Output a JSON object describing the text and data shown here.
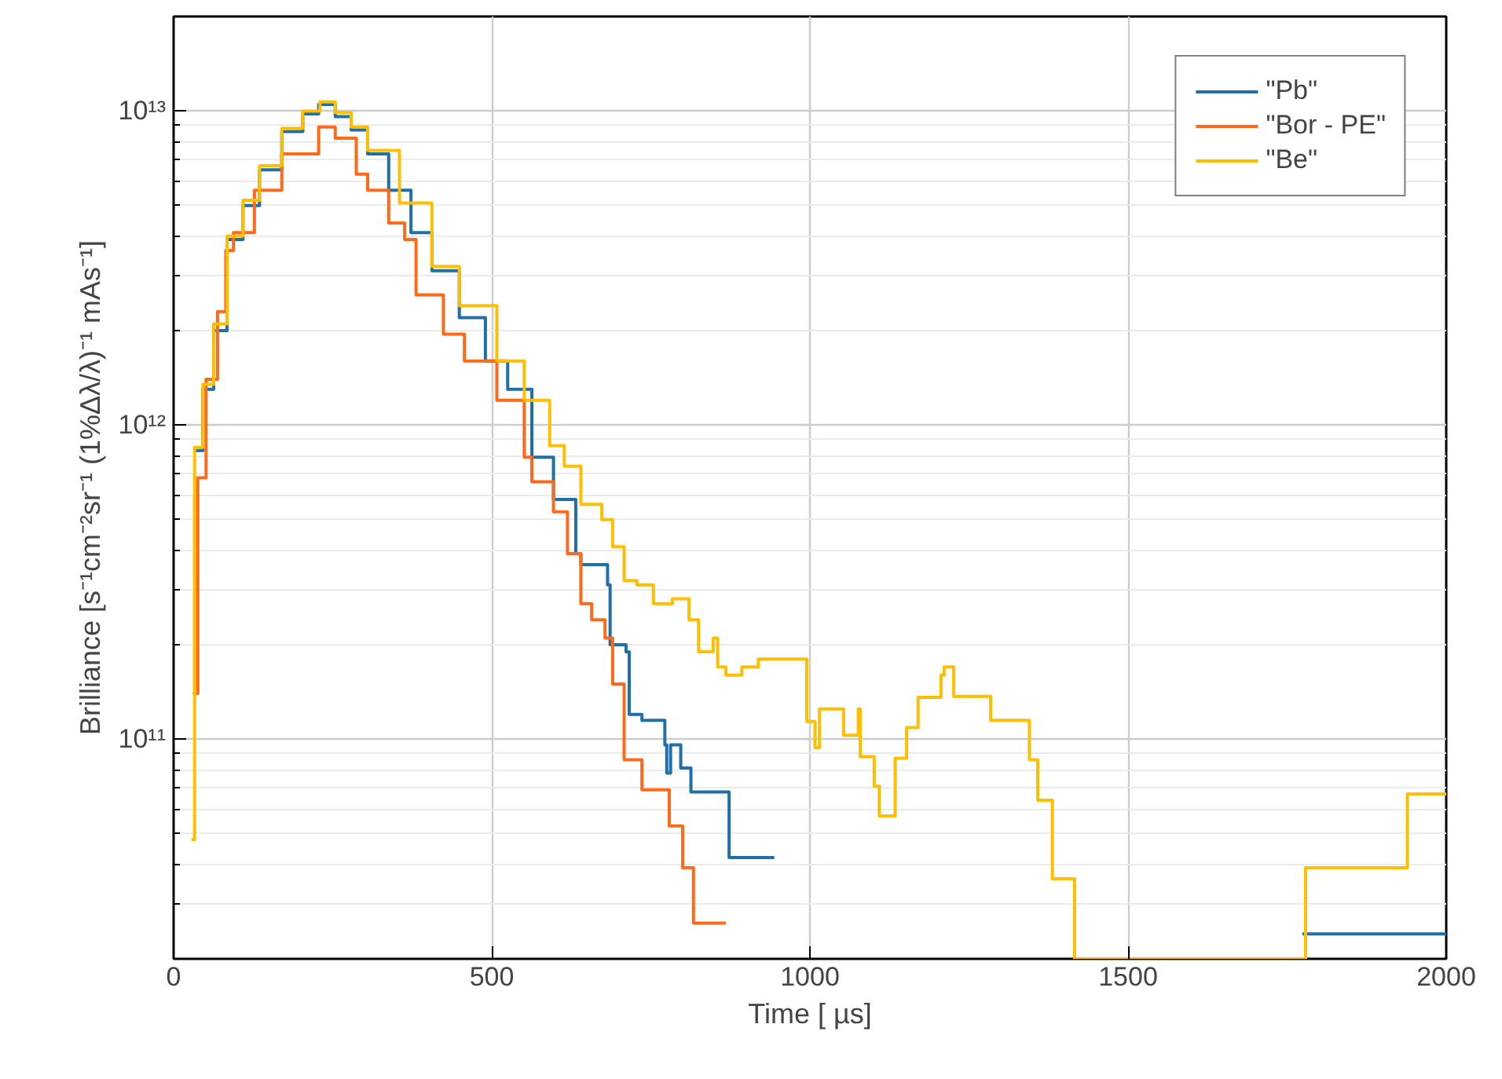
{
  "chart_data": {
    "type": "step",
    "xlabel": "Time [ µs]",
    "ylabel": "Brilliance [s⁻¹cm⁻²sr⁻¹ (1%Δλ/λ)⁻¹ mAs⁻¹]",
    "log": "y",
    "grid": true,
    "legend": "top right",
    "line_style": "solid",
    "xlim": [
      0,
      2000
    ],
    "xticks": [
      0,
      500,
      1000,
      1500,
      2000
    ],
    "ylim": [
      20000000000.0,
      20000000000000.0
    ],
    "yticks": [
      {
        "value": 100000000000.0,
        "label": "10¹¹"
      },
      {
        "value": 1000000000000.0,
        "label": "10¹²"
      },
      {
        "value": 10000000000000.0,
        "label": "10¹³"
      }
    ],
    "series": [
      {
        "name": "\"Pb\"",
        "color": "#1f6fa8",
        "x": [
          33,
          46,
          63,
          84,
          109,
          135,
          170,
          203,
          228,
          254,
          279,
          305,
          338,
          373,
          406,
          449,
          490,
          525,
          563,
          597,
          632,
          640,
          682,
          686,
          711,
          716,
          736,
          772,
          775,
          781,
          797,
          813,
          873,
          944,
          1774,
          2000
        ],
        "values": [
          830000000000.0,
          1300000000000.0,
          2000000000000.0,
          3900000000000.0,
          5000000000000.0,
          6500000000000.0,
          8600000000000.0,
          9800000000000.0,
          10500000000000.0,
          9600000000000.0,
          8700000000000.0,
          7300000000000.0,
          5600000000000.0,
          4100000000000.0,
          3100000000000.0,
          2200000000000.0,
          1600000000000.0,
          1300000000000.0,
          790000000000.0,
          580000000000.0,
          390000000000.0,
          360000000000.0,
          310000000000.0,
          200000000000.0,
          190000000000.0,
          120000000000.0,
          115000000000.0,
          96000000000.0,
          78000000000.0,
          96000000000.0,
          81000000000.0,
          68000000000.0,
          42000000000.0,
          null,
          24000000000.0,
          24000000000.0
        ]
      },
      {
        "name": "\"Bor - PE\"",
        "color": "#ff6a1a",
        "x": [
          30,
          38,
          51,
          69,
          82,
          94,
          127,
          170,
          228,
          254,
          287,
          305,
          338,
          363,
          381,
          424,
          457,
          508,
          551,
          563,
          597,
          619,
          640,
          657,
          678,
          690,
          708,
          736,
          779,
          800,
          817,
          868
        ],
        "values": [
          140000000000.0,
          680000000000.0,
          1400000000000.0,
          2300000000000.0,
          3600000000000.0,
          4100000000000.0,
          5600000000000.0,
          7300000000000.0,
          8900000000000.0,
          8200000000000.0,
          6300000000000.0,
          5600000000000.0,
          4400000000000.0,
          3900000000000.0,
          2600000000000.0,
          1950000000000.0,
          1600000000000.0,
          1200000000000.0,
          790000000000.0,
          660000000000.0,
          530000000000.0,
          390000000000.0,
          270000000000.0,
          240000000000.0,
          210000000000.0,
          150000000000.0,
          86000000000.0,
          69000000000.0,
          53000000000.0,
          39000000000.0,
          26000000000.0,
          26000000000.0
        ]
      },
      {
        "name": "\"Be\"",
        "color": "#ffbf00",
        "x": [
          28,
          33,
          46,
          63,
          84,
          109,
          135,
          170,
          203,
          230,
          254,
          279,
          305,
          355,
          406,
          449,
          508,
          551,
          591,
          614,
          640,
          673,
          690,
          708,
          728,
          754,
          784,
          810,
          825,
          848,
          855,
          868,
          893,
          919,
          995,
          1008,
          1015,
          1053,
          1076,
          1079,
          1101,
          1109,
          1134,
          1152,
          1170,
          1206,
          1211,
          1226,
          1284,
          1345,
          1358,
          1381,
          1416,
          1779,
          1939,
          2000
        ],
        "values": [
          48000000000.0,
          850000000000.0,
          1350000000000.0,
          2100000000000.0,
          4000000000000.0,
          5200000000000.0,
          6700000000000.0,
          8800000000000.0,
          10000000000000.0,
          10700000000000.0,
          9900000000000.0,
          8900000000000.0,
          7500000000000.0,
          5100000000000.0,
          3200000000000.0,
          2400000000000.0,
          1600000000000.0,
          1200000000000.0,
          860000000000.0,
          740000000000.0,
          560000000000.0,
          500000000000.0,
          410000000000.0,
          320000000000.0,
          310000000000.0,
          270000000000.0,
          280000000000.0,
          240000000000.0,
          190000000000.0,
          210000000000.0,
          170000000000.0,
          160000000000.0,
          170000000000.0,
          180000000000.0,
          114000000000.0,
          94000000000.0,
          125000000000.0,
          103000000000.0,
          125000000000.0,
          88000000000.0,
          71000000000.0,
          57000000000.0,
          87000000000.0,
          109000000000.0,
          136000000000.0,
          160000000000.0,
          170000000000.0,
          137000000000.0,
          115000000000.0,
          86000000000.0,
          64000000000.0,
          36000000000.0,
          20000000000.0,
          39000000000.0,
          67000000000.0,
          67000000000.0
        ]
      }
    ]
  }
}
